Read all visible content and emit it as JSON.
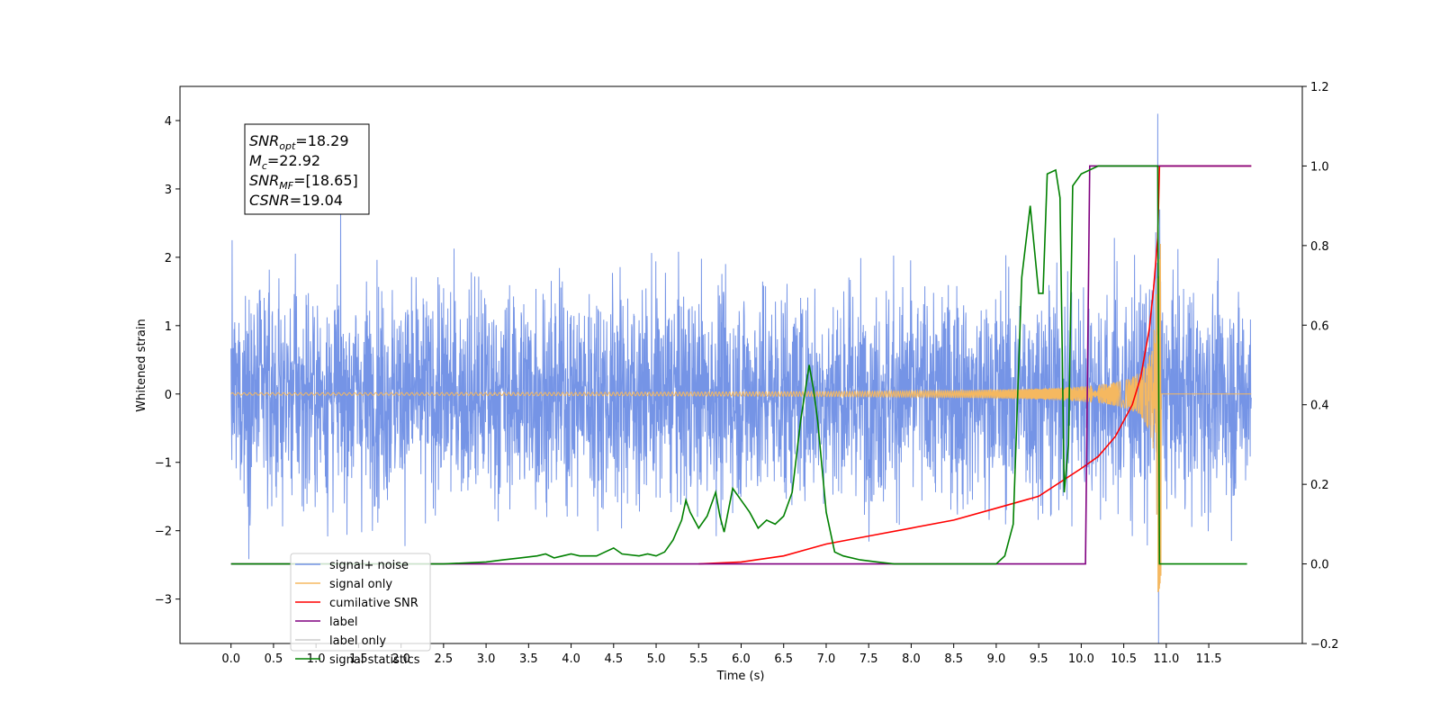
{
  "chart_data": {
    "type": "line",
    "xlabel": "Time (s)",
    "ylabel": "Whitened strain",
    "xlim": [
      -0.6,
      12.6
    ],
    "ylim": [
      -3.65,
      4.5
    ],
    "y2lim": [
      -0.2,
      1.2
    ],
    "x_ticks": [
      0.0,
      0.5,
      1.0,
      1.5,
      2.0,
      2.5,
      3.0,
      3.5,
      4.0,
      4.5,
      5.0,
      5.5,
      6.0,
      6.5,
      7.0,
      7.5,
      8.0,
      8.5,
      9.0,
      9.5,
      10.0,
      10.5,
      11.0,
      11.5
    ],
    "x_tick_labels": [
      "0.0",
      "0.5",
      "1.0",
      "1.5",
      "2.0",
      "2.5",
      "3.0",
      "3.5",
      "4.0",
      "4.5",
      "5.0",
      "5.5",
      "6.0",
      "6.5",
      "7.0",
      "7.5",
      "8.0",
      "8.5",
      "9.0",
      "9.5",
      "10.0",
      "10.5",
      "11.0",
      "11.5"
    ],
    "y_ticks": [
      -3,
      -2,
      -1,
      0,
      1,
      2,
      3,
      4
    ],
    "y_tick_labels": [
      "−3",
      "−2",
      "−1",
      "0",
      "1",
      "2",
      "3",
      "4"
    ],
    "y2_ticks": [
      -0.2,
      0.0,
      0.2,
      0.4,
      0.6,
      0.8,
      1.0,
      1.2
    ],
    "y2_tick_labels": [
      "−0.2",
      "0.0",
      "0.2",
      "0.4",
      "0.6",
      "0.8",
      "1.0",
      "1.2"
    ],
    "grid": false,
    "legend_position": "lower-left",
    "annotation_lines": [
      {
        "base": "SNR",
        "sub": "opt",
        "value": "=18.29"
      },
      {
        "base": "M",
        "sub": "c",
        "value": "=22.92"
      },
      {
        "base": "SNR",
        "sub": "MF",
        "value": "=[18.65]"
      },
      {
        "base": "CSNR",
        "sub": "",
        "value": "=19.04"
      }
    ],
    "series": [
      {
        "name": "signal+ noise",
        "color": "#7594e6",
        "axis": "left",
        "x_start": 0.0,
        "x_end": 12.0,
        "std": 0.78,
        "peak_x": 10.9,
        "peak_y": 4.1
      },
      {
        "name": "signal only",
        "color": "#f5b860",
        "axis": "left",
        "x_start": 0.0,
        "x_end": 12.0,
        "peak_x": 10.9,
        "peak_amplitude": 2.9
      },
      {
        "name": "cumilative SNR",
        "color": "#ff0000",
        "axis": "right",
        "x": [
          5.5,
          6.0,
          6.5,
          7.0,
          7.5,
          8.0,
          8.5,
          9.0,
          9.5,
          10.0,
          10.2,
          10.4,
          10.6,
          10.7,
          10.8,
          10.85,
          10.9,
          10.92,
          12.0
        ],
        "y": [
          0.0,
          0.005,
          0.02,
          0.05,
          0.07,
          0.09,
          0.11,
          0.14,
          0.17,
          0.24,
          0.27,
          0.32,
          0.4,
          0.47,
          0.59,
          0.69,
          0.82,
          1.0,
          1.0
        ]
      },
      {
        "name": "label",
        "color": "#800080",
        "axis": "right",
        "x": [
          0.0,
          10.05,
          10.1,
          10.9,
          12.0
        ],
        "y": [
          0.0,
          0.0,
          1.0,
          1.0,
          1.0
        ]
      },
      {
        "name": "label only",
        "color": "#cccccc",
        "axis": "right",
        "x": [],
        "y": []
      },
      {
        "name": "signal statistics",
        "color": "#008000",
        "axis": "right",
        "x": [
          0.0,
          2.5,
          3.0,
          3.2,
          3.4,
          3.6,
          3.7,
          3.8,
          3.9,
          4.0,
          4.1,
          4.3,
          4.4,
          4.5,
          4.6,
          4.8,
          4.9,
          5.0,
          5.1,
          5.2,
          5.3,
          5.35,
          5.4,
          5.5,
          5.6,
          5.7,
          5.75,
          5.8,
          5.9,
          6.0,
          6.1,
          6.2,
          6.3,
          6.4,
          6.5,
          6.6,
          6.7,
          6.8,
          6.85,
          6.9,
          7.0,
          7.1,
          7.2,
          7.4,
          7.6,
          7.8,
          8.0,
          8.2,
          8.4,
          8.6,
          8.8,
          9.0,
          9.1,
          9.2,
          9.3,
          9.4,
          9.5,
          9.55,
          9.6,
          9.7,
          9.75,
          9.8,
          9.85,
          9.9,
          10.0,
          10.2,
          10.5,
          10.9,
          10.92,
          11.0,
          11.5,
          11.95
        ],
        "y": [
          0.0,
          0.0,
          0.005,
          0.01,
          0.015,
          0.02,
          0.025,
          0.015,
          0.02,
          0.025,
          0.02,
          0.02,
          0.03,
          0.04,
          0.025,
          0.02,
          0.025,
          0.02,
          0.03,
          0.06,
          0.11,
          0.16,
          0.13,
          0.09,
          0.12,
          0.18,
          0.12,
          0.08,
          0.19,
          0.16,
          0.13,
          0.09,
          0.11,
          0.1,
          0.12,
          0.18,
          0.36,
          0.5,
          0.44,
          0.36,
          0.13,
          0.03,
          0.02,
          0.01,
          0.005,
          0.0,
          0.0,
          0.0,
          0.0,
          0.0,
          0.0,
          0.0,
          0.02,
          0.1,
          0.72,
          0.9,
          0.68,
          0.68,
          0.98,
          0.99,
          0.92,
          0.18,
          0.3,
          0.95,
          0.98,
          1.0,
          1.0,
          1.0,
          0.0,
          0.0,
          0.0,
          0.0
        ]
      }
    ]
  }
}
